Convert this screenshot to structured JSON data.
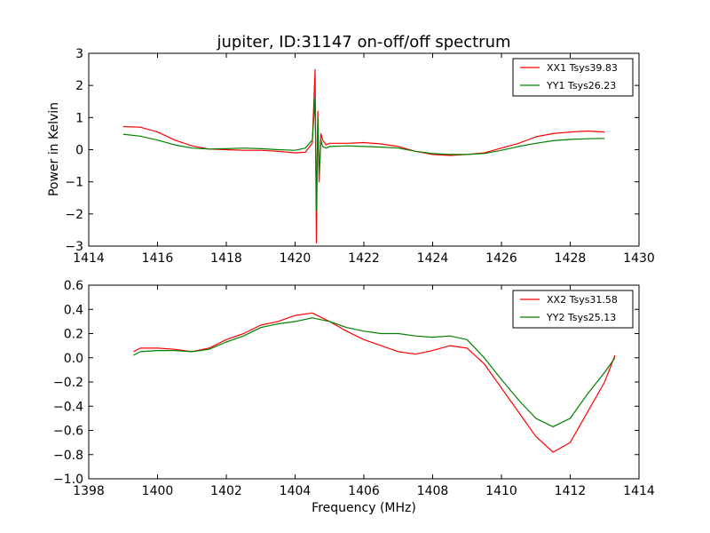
{
  "chart_data": [
    {
      "type": "line",
      "title": "jupiter, ID:31147 on-off/off spectrum",
      "xlabel": "",
      "ylabel": "Power in Kelvin",
      "xlim": [
        1414,
        1430
      ],
      "ylim": [
        -3,
        3
      ],
      "xticks": [
        1414,
        1416,
        1418,
        1420,
        1422,
        1424,
        1426,
        1428,
        1430
      ],
      "yticks": [
        -3,
        -2,
        -1,
        0,
        1,
        2,
        3
      ],
      "xticklabels": [
        "1414",
        "1416",
        "1418",
        "1420",
        "1422",
        "1424",
        "1426",
        "1428",
        "1430"
      ],
      "yticklabels": [
        "−3",
        "−2",
        "−1",
        "0",
        "1",
        "2",
        "3"
      ],
      "grid": false,
      "legend": "top-right",
      "series": [
        {
          "name": "XX1 Tsys39.83",
          "color": "#ff0000",
          "x": [
            1415.0,
            1415.5,
            1416.0,
            1416.5,
            1417.0,
            1417.5,
            1418.0,
            1418.5,
            1419.0,
            1419.5,
            1420.0,
            1420.3,
            1420.5,
            1420.58,
            1420.62,
            1420.66,
            1420.7,
            1420.75,
            1420.8,
            1420.9,
            1421.0,
            1421.5,
            1422.0,
            1422.5,
            1423.0,
            1423.5,
            1424.0,
            1424.5,
            1425.0,
            1425.5,
            1426.0,
            1426.5,
            1427.0,
            1427.5,
            1428.0,
            1428.5,
            1429.0
          ],
          "y": [
            0.72,
            0.7,
            0.55,
            0.3,
            0.12,
            0.02,
            0.0,
            -0.02,
            -0.02,
            -0.05,
            -0.1,
            -0.08,
            0.2,
            2.5,
            -2.9,
            1.2,
            -1.0,
            0.5,
            0.3,
            0.15,
            0.2,
            0.2,
            0.22,
            0.18,
            0.1,
            -0.05,
            -0.15,
            -0.18,
            -0.15,
            -0.1,
            0.05,
            0.2,
            0.4,
            0.5,
            0.55,
            0.58,
            0.55
          ]
        },
        {
          "name": "YY1 Tsys26.23",
          "color": "#008000",
          "x": [
            1415.0,
            1415.5,
            1416.0,
            1416.5,
            1417.0,
            1417.5,
            1418.0,
            1418.5,
            1419.0,
            1419.5,
            1420.0,
            1420.3,
            1420.5,
            1420.58,
            1420.62,
            1420.66,
            1420.7,
            1420.75,
            1420.8,
            1420.9,
            1421.0,
            1421.5,
            1422.0,
            1422.5,
            1423.0,
            1423.5,
            1424.0,
            1424.5,
            1425.0,
            1425.5,
            1426.0,
            1426.5,
            1427.0,
            1427.5,
            1428.0,
            1428.5,
            1429.0
          ],
          "y": [
            0.48,
            0.42,
            0.3,
            0.15,
            0.05,
            0.02,
            0.03,
            0.05,
            0.03,
            0.0,
            -0.02,
            0.05,
            0.3,
            1.6,
            -1.9,
            1.0,
            -0.8,
            0.3,
            0.1,
            0.05,
            0.1,
            0.12,
            0.1,
            0.08,
            0.05,
            -0.05,
            -0.12,
            -0.15,
            -0.15,
            -0.12,
            -0.02,
            0.1,
            0.2,
            0.28,
            0.32,
            0.34,
            0.35
          ]
        }
      ]
    },
    {
      "type": "line",
      "title": "",
      "xlabel": "Frequency (MHz)",
      "ylabel": "",
      "xlim": [
        1398,
        1414
      ],
      "ylim": [
        -1.0,
        0.6
      ],
      "xticks": [
        1398,
        1400,
        1402,
        1404,
        1406,
        1408,
        1410,
        1412,
        1414
      ],
      "yticks": [
        -1.0,
        -0.8,
        -0.6,
        -0.4,
        -0.2,
        0.0,
        0.2,
        0.4,
        0.6
      ],
      "xticklabels": [
        "1398",
        "1400",
        "1402",
        "1404",
        "1406",
        "1408",
        "1410",
        "1412",
        "1414"
      ],
      "yticklabels": [
        "−1.0",
        "−0.8",
        "−0.6",
        "−0.4",
        "−0.2",
        "0.0",
        "0.2",
        "0.4",
        "0.6"
      ],
      "grid": false,
      "legend": "top-right",
      "series": [
        {
          "name": "XX2 Tsys31.58",
          "color": "#ff0000",
          "x": [
            1399.3,
            1399.5,
            1400.0,
            1400.5,
            1401.0,
            1401.5,
            1402.0,
            1402.5,
            1403.0,
            1403.5,
            1404.0,
            1404.5,
            1405.0,
            1405.5,
            1406.0,
            1406.5,
            1407.0,
            1407.5,
            1408.0,
            1408.5,
            1409.0,
            1409.5,
            1410.0,
            1410.5,
            1411.0,
            1411.5,
            1412.0,
            1412.5,
            1413.0,
            1413.3
          ],
          "y": [
            0.05,
            0.08,
            0.08,
            0.07,
            0.05,
            0.08,
            0.15,
            0.2,
            0.27,
            0.3,
            0.35,
            0.37,
            0.3,
            0.22,
            0.15,
            0.1,
            0.05,
            0.03,
            0.06,
            0.1,
            0.08,
            -0.05,
            -0.25,
            -0.45,
            -0.65,
            -0.78,
            -0.7,
            -0.45,
            -0.2,
            0.02
          ]
        },
        {
          "name": "YY2 Tsys25.13",
          "color": "#008000",
          "x": [
            1399.3,
            1399.5,
            1400.0,
            1400.5,
            1401.0,
            1401.5,
            1402.0,
            1402.5,
            1403.0,
            1403.5,
            1404.0,
            1404.5,
            1405.0,
            1405.5,
            1406.0,
            1406.5,
            1407.0,
            1407.5,
            1408.0,
            1408.5,
            1409.0,
            1409.5,
            1410.0,
            1410.5,
            1411.0,
            1411.5,
            1412.0,
            1412.5,
            1413.0,
            1413.3
          ],
          "y": [
            0.02,
            0.05,
            0.06,
            0.06,
            0.05,
            0.07,
            0.13,
            0.18,
            0.25,
            0.28,
            0.3,
            0.33,
            0.3,
            0.25,
            0.22,
            0.2,
            0.2,
            0.18,
            0.17,
            0.18,
            0.15,
            0.0,
            -0.18,
            -0.35,
            -0.5,
            -0.57,
            -0.5,
            -0.3,
            -0.12,
            0.0
          ]
        }
      ]
    }
  ]
}
